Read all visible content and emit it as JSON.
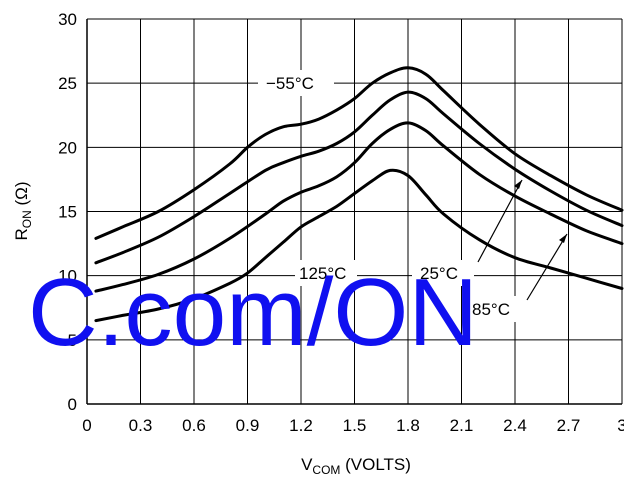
{
  "chart_data": {
    "type": "line",
    "xlabel": "V",
    "xlabel_sub": "COM",
    "xlabel_suffix": " (VOLTS)",
    "ylabel": "R",
    "ylabel_sub": "ON",
    "ylabel_suffix": " (Ω)",
    "xlim": [
      0,
      3.0
    ],
    "ylim": [
      0,
      30
    ],
    "x_ticks": [
      "0",
      "0.3",
      "0.6",
      "0.9",
      "1.2",
      "1.5",
      "1.8",
      "2.1",
      "2.4",
      "2.7",
      "3"
    ],
    "y_ticks": [
      "0",
      "5",
      "10",
      "15",
      "20",
      "25",
      "30"
    ],
    "grid": true,
    "series": [
      {
        "x": [
          0.05,
          0.2,
          0.4,
          0.6,
          0.8,
          0.9,
          1.0,
          1.1,
          1.2,
          1.3,
          1.4,
          1.5,
          1.6,
          1.7,
          1.8,
          1.9,
          2.0,
          2.2,
          2.4,
          2.6,
          2.8,
          3.0
        ],
        "values": [
          12.9,
          13.8,
          15.0,
          16.7,
          18.7,
          20.0,
          21.0,
          21.6,
          21.8,
          22.2,
          22.9,
          23.8,
          25.0,
          25.8,
          26.2,
          25.7,
          24.4,
          21.8,
          19.5,
          17.8,
          16.3,
          15.1
        ]
      },
      {
        "x": [
          0.05,
          0.2,
          0.4,
          0.6,
          0.8,
          1.0,
          1.1,
          1.2,
          1.3,
          1.4,
          1.5,
          1.6,
          1.7,
          1.8,
          1.9,
          2.0,
          2.2,
          2.4,
          2.6,
          2.8,
          3.0
        ],
        "values": [
          11.0,
          11.8,
          13.0,
          14.6,
          16.4,
          18.2,
          18.8,
          19.3,
          19.7,
          20.3,
          21.2,
          22.5,
          23.7,
          24.3,
          23.8,
          22.6,
          20.3,
          18.3,
          16.6,
          15.1,
          13.9
        ]
      },
      {
        "x": [
          0.05,
          0.2,
          0.4,
          0.6,
          0.8,
          1.0,
          1.1,
          1.2,
          1.3,
          1.4,
          1.5,
          1.6,
          1.7,
          1.8,
          1.9,
          2.0,
          2.2,
          2.4,
          2.6,
          2.8,
          3.0
        ],
        "values": [
          8.8,
          9.3,
          10.1,
          11.3,
          12.9,
          14.8,
          15.8,
          16.5,
          17.0,
          17.7,
          18.8,
          20.3,
          21.4,
          21.9,
          21.3,
          20.1,
          17.9,
          16.2,
          14.8,
          13.5,
          12.5
        ]
      },
      {
        "x": [
          0.05,
          0.2,
          0.4,
          0.6,
          0.8,
          0.9,
          1.0,
          1.1,
          1.2,
          1.3,
          1.4,
          1.5,
          1.6,
          1.7,
          1.8,
          1.9,
          2.0,
          2.2,
          2.4,
          2.6,
          2.8,
          3.0
        ],
        "values": [
          6.5,
          6.9,
          7.4,
          8.2,
          9.4,
          10.2,
          11.4,
          12.6,
          13.8,
          14.6,
          15.4,
          16.4,
          17.4,
          18.2,
          17.8,
          16.3,
          14.8,
          12.8,
          11.4,
          10.6,
          9.8,
          9.0
        ]
      }
    ],
    "annotations": [
      {
        "text": "−55°C"
      },
      {
        "text": "125°C"
      },
      {
        "text": "25°C"
      },
      {
        "text": "85°C"
      }
    ],
    "watermark": "C.com/ON"
  }
}
